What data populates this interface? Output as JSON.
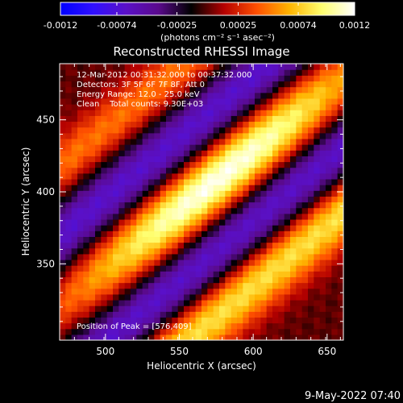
{
  "chart_data": {
    "type": "heatmap",
    "title": "Reconstructed RHESSI Image",
    "xlabel": "Heliocentric X (arcsec)",
    "ylabel": "Heliocentric Y (arcsec)",
    "xlim": [
      469,
      661
    ],
    "ylim": [
      297,
      489
    ],
    "xticks": [
      500,
      550,
      600,
      650
    ],
    "yticks": [
      350,
      400,
      450
    ],
    "colorbar": {
      "min": -0.0012,
      "max": 0.0012,
      "ticks": [
        "-0.0012",
        "-0.00074",
        "-0.00025",
        "0.00025",
        "0.00074",
        "0.0012"
      ],
      "unit_label": "(photons cm⁻² s⁻¹ asec⁻²)",
      "stops": [
        "#0000ff",
        "#3010ff",
        "#5a10c8",
        "#5a0a8c",
        "#000000",
        "#b40000",
        "#ff5000",
        "#ffb400",
        "#ffff70",
        "#ffffff"
      ]
    },
    "annotations": [
      "12-Mar-2012 00:31:32.000 to 00:37:32.000",
      "Detectors: 3F 5F 6F 7F 8F, Att 0",
      "Energy Range: 12.0 - 25.0 keV",
      "Clean    Total counts: 9.30E+03"
    ],
    "peak_label": "Position of Peak = [576,409]",
    "peak": {
      "x": 576,
      "y": 409
    },
    "features": [
      {
        "name": "main ridge",
        "peak_value": 0.0012,
        "center": [
          576,
          409
        ],
        "orientation_deg": 40,
        "width_arcsec": 30
      },
      {
        "name": "lower-left positive band",
        "peak_value": 0.00085,
        "offset_arcsec": -72
      },
      {
        "name": "negative troughs",
        "value": -0.0007,
        "offset_arcsec": [
          -38,
          38
        ]
      },
      {
        "name": "upper-right positive band",
        "peak_value": 0.0005,
        "offset_arcsec": 75
      }
    ]
  },
  "footer": {
    "timestamp": "9-May-2022 07:40"
  }
}
